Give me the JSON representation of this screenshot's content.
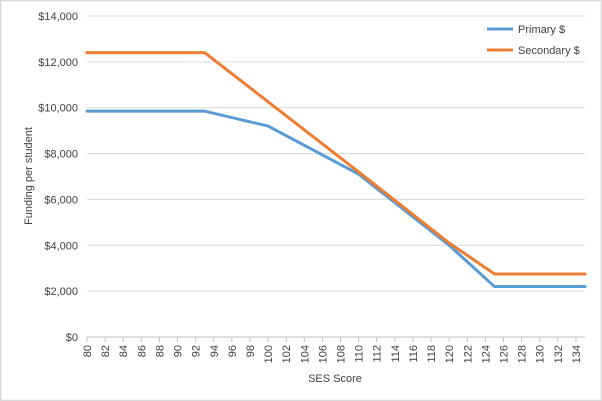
{
  "chart_data": {
    "type": "line",
    "title": "",
    "xlabel": "SES Score",
    "ylabel": "Funding per student",
    "x_ticks": [
      "80",
      "82",
      "84",
      "86",
      "88",
      "90",
      "92",
      "94",
      "96",
      "98",
      "100",
      "102",
      "104",
      "106",
      "108",
      "110",
      "112",
      "114",
      "116",
      "118",
      "120",
      "122",
      "124",
      "126",
      "128",
      "130",
      "132",
      "134"
    ],
    "xlim": [
      80,
      135
    ],
    "y_ticks": [
      "$0",
      "$2,000",
      "$4,000",
      "$6,000",
      "$8,000",
      "$10,000",
      "$12,000",
      "$14,000"
    ],
    "ylim": [
      0,
      14000
    ],
    "grid": "horizontal",
    "legend_position": "top-right",
    "series": [
      {
        "name": "Primary $",
        "color": "#5b9bd5",
        "x": [
          80,
          93,
          100,
          110,
          120,
          125,
          135
        ],
        "y": [
          9850,
          9850,
          9200,
          7100,
          4000,
          2200,
          2200
        ]
      },
      {
        "name": "Secondary $",
        "color": "#ed7d31",
        "x": [
          80,
          93,
          110,
          120,
          125,
          135
        ],
        "y": [
          12400,
          12400,
          7200,
          4100,
          2750,
          2750
        ]
      }
    ]
  }
}
